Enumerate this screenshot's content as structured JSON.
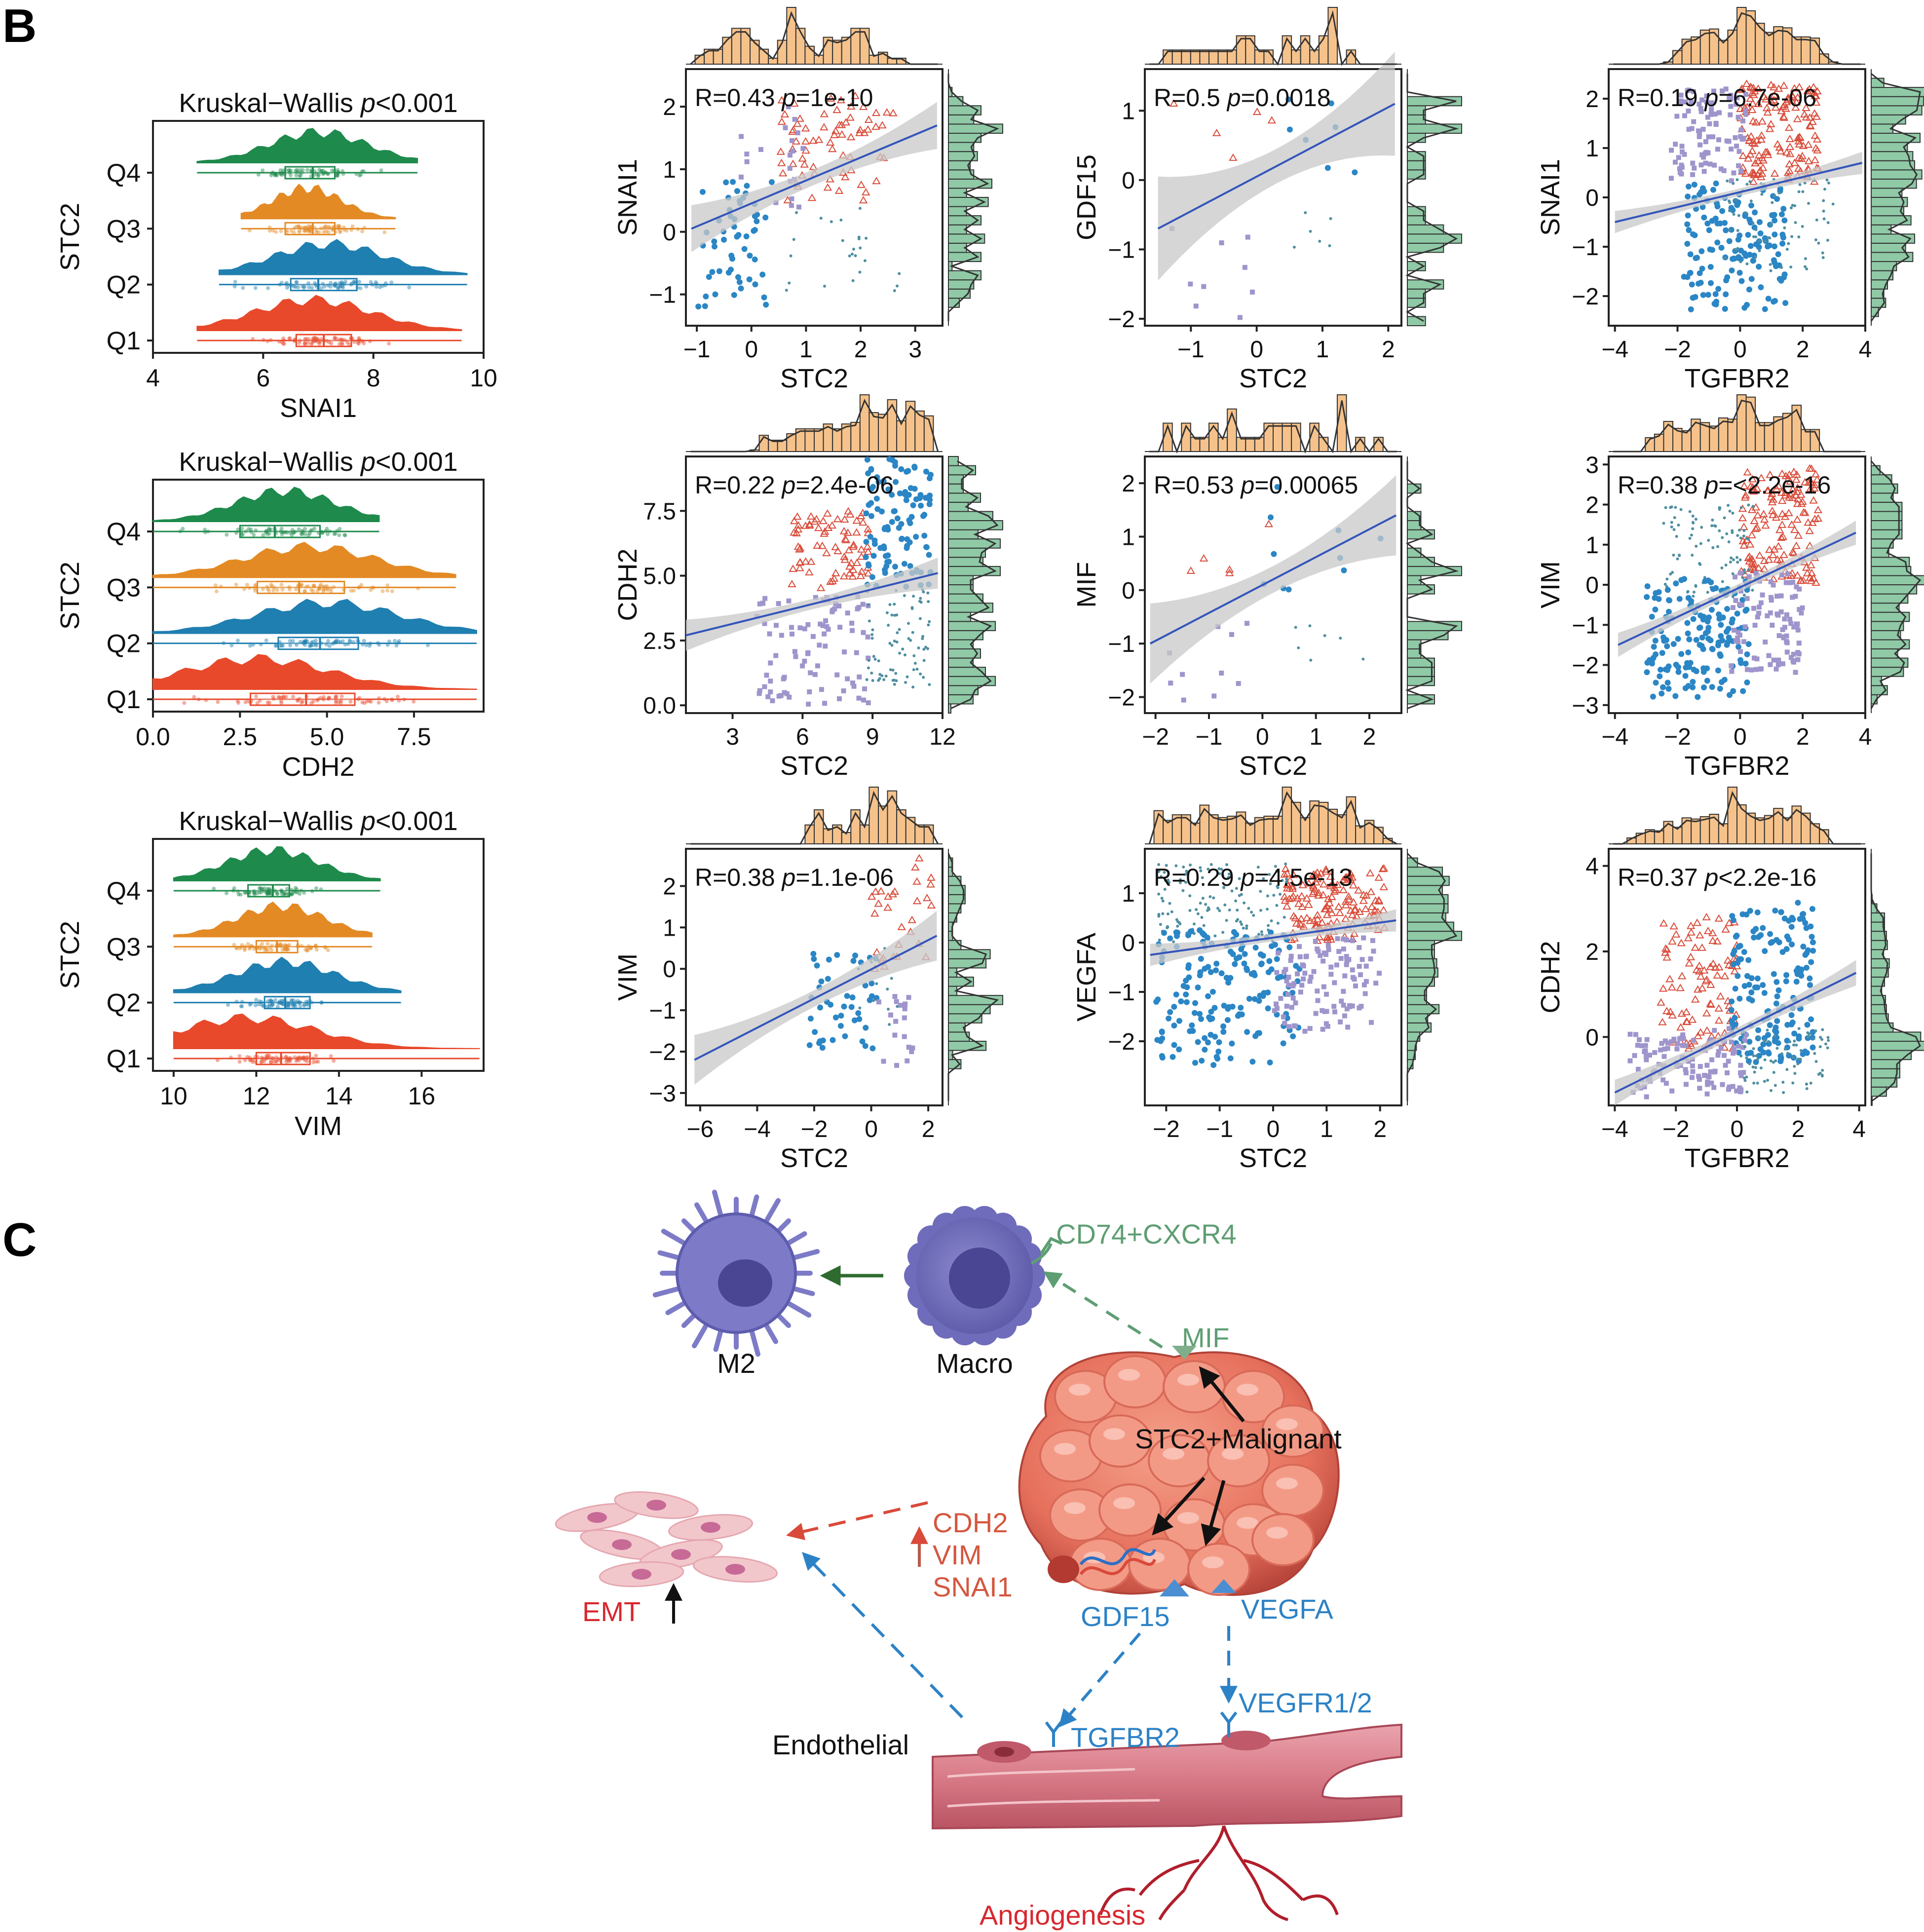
{
  "panels": {
    "b_letter": "B",
    "c_letter": "C"
  },
  "colors": {
    "Q1": "#e8492b",
    "Q2": "#1f7fb0",
    "Q3": "#e38a25",
    "Q4": "#1e8a4c",
    "red_pts": "#d94c3a",
    "blue_pts": "#2b86c5",
    "purple_pts": "#9f95cc",
    "teal_pts": "#4f8fa0",
    "reg_line": "#3355bb",
    "ci_band": "#c8c8c8",
    "hist_top": "#f6c28b",
    "hist_right": "#8fc9a6",
    "green_text": "#5e9e73",
    "red_text": "#d94a3a",
    "blue_text": "#2d82c6",
    "dark_green_arrow": "#2f6b2f"
  },
  "chart_data": [
    {
      "type": "raincloud",
      "title": "Kruskal−Wallis  p<0.001",
      "title_prefix": "Kruskal−Wallis  ",
      "title_p": "p",
      "title_suffix": "<0.001",
      "xlabel": "SNAI1",
      "ylabel": "STC2",
      "xlim": [
        4,
        10
      ],
      "xticks": [
        "4",
        "6",
        "8",
        "10"
      ],
      "groups": [
        {
          "name": "Q4",
          "range": [
            4.8,
            8.8
          ],
          "q1": 6.4,
          "median": 6.9,
          "q3": 7.3,
          "peak": 7.0
        },
        {
          "name": "Q3",
          "range": [
            5.6,
            8.4
          ],
          "q1": 6.4,
          "median": 6.9,
          "q3": 7.3,
          "peak": 6.8
        },
        {
          "name": "Q2",
          "range": [
            5.2,
            9.7
          ],
          "q1": 6.5,
          "median": 7.0,
          "q3": 7.7,
          "peak": 7.2
        },
        {
          "name": "Q1",
          "range": [
            4.8,
            9.6
          ],
          "q1": 6.6,
          "median": 7.1,
          "q3": 7.6,
          "peak": 6.9
        }
      ]
    },
    {
      "type": "raincloud",
      "title": "Kruskal−Wallis  p<0.001",
      "title_prefix": "Kruskal−Wallis  ",
      "title_p": "p",
      "title_suffix": "<0.001",
      "xlabel": "CDH2",
      "ylabel": "STC2",
      "xlim": [
        0,
        9.5
      ],
      "xticks": [
        "0.0",
        "2.5",
        "5.0",
        "7.5"
      ],
      "groups": [
        {
          "name": "Q4",
          "range": [
            0.0,
            6.5
          ],
          "q1": 2.5,
          "median": 3.5,
          "q3": 4.8,
          "peak": 3.8
        },
        {
          "name": "Q3",
          "range": [
            0.0,
            8.7
          ],
          "q1": 3.0,
          "median": 4.2,
          "q3": 5.5,
          "peak": 4.5
        },
        {
          "name": "Q2",
          "range": [
            0.0,
            9.3
          ],
          "q1": 3.6,
          "median": 4.8,
          "q3": 5.9,
          "peak": 5.0
        },
        {
          "name": "Q1",
          "range": [
            0.0,
            9.3
          ],
          "q1": 2.8,
          "median": 4.4,
          "q3": 5.8,
          "peak": 3.0
        }
      ]
    },
    {
      "type": "raincloud",
      "title": "Kruskal−Wallis  p<0.001",
      "title_prefix": "Kruskal−Wallis  ",
      "title_p": "p",
      "title_suffix": "<0.001",
      "xlabel": "VIM",
      "ylabel": "STC2",
      "xlim": [
        9.5,
        17.5
      ],
      "xticks": [
        "10",
        "12",
        "14",
        "16"
      ],
      "groups": [
        {
          "name": "Q4",
          "range": [
            10.0,
            15.0
          ],
          "q1": 11.8,
          "median": 12.4,
          "q3": 12.8,
          "peak": 12.4
        },
        {
          "name": "Q3",
          "range": [
            10.0,
            14.8
          ],
          "q1": 12.0,
          "median": 12.5,
          "q3": 13.0,
          "peak": 12.6
        },
        {
          "name": "Q2",
          "range": [
            10.0,
            15.5
          ],
          "q1": 12.2,
          "median": 12.7,
          "q3": 13.3,
          "peak": 12.7
        },
        {
          "name": "Q1",
          "range": [
            10.0,
            17.4
          ],
          "q1": 12.0,
          "median": 12.6,
          "q3": 13.3,
          "peak": 11.8
        }
      ]
    },
    {
      "type": "scatter",
      "annotation_r": "R=0.43",
      "annotation_p": "p",
      "annotation_val": "=1e-10",
      "xlabel": "STC2",
      "ylabel": "SNAI1",
      "xlim": [
        -1.2,
        3.5
      ],
      "ylim": [
        -1.5,
        2.6
      ],
      "xticks": [
        -1,
        0,
        1,
        2,
        3
      ],
      "yticks": [
        -1,
        0,
        1,
        2
      ],
      "line": {
        "x0": -1.1,
        "y0": 0.05,
        "x1": 3.4,
        "y1": 1.7
      },
      "ci": 0.25,
      "clusters": [
        {
          "c": "red",
          "m": "tri",
          "x": [
            0.5,
            2.6
          ],
          "y": [
            0.5,
            2.2
          ],
          "n": 70
        },
        {
          "c": "purple",
          "m": "sq",
          "x": [
            -0.2,
            1.0
          ],
          "y": [
            0.3,
            2.0
          ],
          "n": 20
        },
        {
          "c": "blue",
          "m": "dot",
          "x": [
            -1.0,
            0.4
          ],
          "y": [
            -1.2,
            0.8
          ],
          "n": 55
        },
        {
          "c": "teal",
          "m": "small",
          "x": [
            0.6,
            2.8
          ],
          "y": [
            -1.0,
            0.4
          ],
          "n": 25
        }
      ]
    },
    {
      "type": "scatter",
      "annotation_r": "R=0.5",
      "annotation_p": "p",
      "annotation_val": "=0.0018",
      "xlabel": "STC2",
      "ylabel": "GDF15",
      "xlim": [
        -1.7,
        2.2
      ],
      "ylim": [
        -2.1,
        1.6
      ],
      "xticks": [
        -1,
        0,
        1,
        2
      ],
      "yticks": [
        -2,
        -1,
        0,
        1
      ],
      "line": {
        "x0": -1.5,
        "y0": -0.7,
        "x1": 2.1,
        "y1": 1.1
      },
      "ci": 0.5,
      "clusters": [
        {
          "c": "red",
          "m": "tri",
          "x": [
            -1.5,
            0.6
          ],
          "y": [
            0.3,
            1.2
          ],
          "n": 5
        },
        {
          "c": "purple",
          "m": "sq",
          "x": [
            -1.4,
            0.0
          ],
          "y": [
            -2.0,
            -0.7
          ],
          "n": 9
        },
        {
          "c": "blue",
          "m": "dot",
          "x": [
            0.4,
            1.8
          ],
          "y": [
            0.0,
            1.2
          ],
          "n": 7
        },
        {
          "c": "teal",
          "m": "small",
          "x": [
            0.5,
            1.5
          ],
          "y": [
            -1.0,
            -0.2
          ],
          "n": 6
        }
      ]
    },
    {
      "type": "scatter",
      "annotation_r": "R=0.19",
      "annotation_p": "p",
      "annotation_val": "=6.7e-06",
      "xlabel": "TGFBR2",
      "ylabel": "SNAI1",
      "xlim": [
        -4.2,
        4
      ],
      "ylim": [
        -2.6,
        2.6
      ],
      "xticks": [
        -4,
        -2,
        0,
        2,
        4
      ],
      "yticks": [
        -2,
        -1,
        0,
        1,
        2
      ],
      "line": {
        "x0": -4.0,
        "y0": -0.5,
        "x1": 3.9,
        "y1": 0.7
      },
      "ci": 0.15,
      "clusters": [
        {
          "c": "red",
          "m": "tri",
          "x": [
            0.0,
            2.5
          ],
          "y": [
            0.3,
            2.3
          ],
          "n": 150
        },
        {
          "c": "purple",
          "m": "sq",
          "x": [
            -2.2,
            0.2
          ],
          "y": [
            0.3,
            2.2
          ],
          "n": 100
        },
        {
          "c": "blue",
          "m": "dot",
          "x": [
            -1.8,
            1.5
          ],
          "y": [
            -2.3,
            0.3
          ],
          "n": 150
        },
        {
          "c": "teal",
          "m": "small",
          "x": [
            -0.5,
            3.0
          ],
          "y": [
            -1.5,
            0.4
          ],
          "n": 80
        }
      ]
    },
    {
      "type": "scatter",
      "annotation_r": "R=0.22",
      "annotation_p": "p",
      "annotation_val": "=2.4e-06",
      "xlabel": "STC2",
      "ylabel": "CDH2",
      "xlim": [
        1,
        12
      ],
      "ylim": [
        -0.3,
        9.6
      ],
      "xticks": [
        3,
        6,
        9,
        12
      ],
      "yticks": [
        0.0,
        2.5,
        5.0,
        7.5
      ],
      "ytick_labels": [
        "0.0",
        "2.5",
        "5.0",
        "7.5"
      ],
      "line": {
        "x0": 1.0,
        "y0": 2.7,
        "x1": 11.8,
        "y1": 5.1
      },
      "ci": 0.4,
      "clusters": [
        {
          "c": "red",
          "m": "tri",
          "x": [
            5.5,
            9.0
          ],
          "y": [
            4.5,
            7.5
          ],
          "n": 75
        },
        {
          "c": "blue",
          "m": "dot",
          "x": [
            8.7,
            11.5
          ],
          "y": [
            4.5,
            9.5
          ],
          "n": 110
        },
        {
          "c": "purple",
          "m": "sq",
          "x": [
            4.0,
            9.0
          ],
          "y": [
            0.0,
            4.2
          ],
          "n": 90
        },
        {
          "c": "teal",
          "m": "small",
          "x": [
            8.7,
            11.5
          ],
          "y": [
            0.5,
            4.5
          ],
          "n": 80
        }
      ]
    },
    {
      "type": "scatter",
      "annotation_r": "R=0.53",
      "annotation_p": "p",
      "annotation_val": "=0.00065",
      "xlabel": "STC2",
      "ylabel": "MIF",
      "xlim": [
        -2.2,
        2.6
      ],
      "ylim": [
        -2.3,
        2.5
      ],
      "xticks": [
        -2,
        -1,
        0,
        1,
        2
      ],
      "yticks": [
        -2,
        -1,
        0,
        1,
        2
      ],
      "line": {
        "x0": -2.1,
        "y0": -1.0,
        "x1": 2.5,
        "y1": 1.4
      },
      "ci": 0.5,
      "clusters": [
        {
          "c": "red",
          "m": "tri",
          "x": [
            -1.6,
            0.3
          ],
          "y": [
            0.3,
            1.4
          ],
          "n": 5
        },
        {
          "c": "purple",
          "m": "sq",
          "x": [
            -2.0,
            0.0
          ],
          "y": [
            -2.1,
            -0.6
          ],
          "n": 10
        },
        {
          "c": "blue",
          "m": "dot",
          "x": [
            0.0,
            2.4
          ],
          "y": [
            0.0,
            2.0
          ],
          "n": 10
        },
        {
          "c": "teal",
          "m": "small",
          "x": [
            0.5,
            2.0
          ],
          "y": [
            -1.5,
            -0.2
          ],
          "n": 7
        }
      ]
    },
    {
      "type": "scatter",
      "annotation_r": "R=0.38",
      "annotation_p": "p",
      "annotation_val": "=<2.2e-16",
      "xlabel": "TGFBR2",
      "ylabel": "VIM",
      "xlim": [
        -4.2,
        4
      ],
      "ylim": [
        -3.2,
        3.2
      ],
      "xticks": [
        -4,
        -2,
        0,
        2,
        4
      ],
      "yticks": [
        -3,
        -2,
        -1,
        0,
        1,
        2,
        3
      ],
      "line": {
        "x0": -3.9,
        "y0": -1.5,
        "x1": 3.7,
        "y1": 1.3
      },
      "ci": 0.2,
      "clusters": [
        {
          "c": "red",
          "m": "tri",
          "x": [
            0.0,
            2.5
          ],
          "y": [
            0.0,
            2.9
          ],
          "n": 150
        },
        {
          "c": "teal",
          "m": "small",
          "x": [
            -2.5,
            0.5
          ],
          "y": [
            -0.3,
            2.0
          ],
          "n": 100
        },
        {
          "c": "blue",
          "m": "dot",
          "x": [
            -3.0,
            0.3
          ],
          "y": [
            -2.8,
            0.2
          ],
          "n": 160
        },
        {
          "c": "purple",
          "m": "sq",
          "x": [
            -0.3,
            2.0
          ],
          "y": [
            -2.2,
            0.3
          ],
          "n": 100
        }
      ]
    },
    {
      "type": "scatter",
      "annotation_r": "R=0.38",
      "annotation_p": "p",
      "annotation_val": "=1.1e-06",
      "xlabel": "STC2",
      "ylabel": "VIM",
      "xlim": [
        -6.5,
        2.5
      ],
      "ylim": [
        -3.3,
        2.9
      ],
      "xticks": [
        -6,
        -4,
        -2,
        0,
        2
      ],
      "yticks": [
        -3,
        -2,
        -1,
        0,
        1,
        2
      ],
      "line": {
        "x0": -6.2,
        "y0": -2.2,
        "x1": 2.3,
        "y1": 0.8
      },
      "ci": 0.4,
      "clusters": [
        {
          "c": "red",
          "m": "tri",
          "x": [
            0.0,
            2.2
          ],
          "y": [
            0.0,
            2.7
          ],
          "n": 30
        },
        {
          "c": "blue",
          "m": "dot",
          "x": [
            -2.2,
            0.2
          ],
          "y": [
            -2.0,
            0.5
          ],
          "n": 45
        },
        {
          "c": "purple",
          "m": "sq",
          "x": [
            0.0,
            1.5
          ],
          "y": [
            -2.5,
            -0.3
          ],
          "n": 18
        },
        {
          "c": "teal",
          "m": "small",
          "x": [
            -0.5,
            1.0
          ],
          "y": [
            -1.5,
            0.5
          ],
          "n": 12
        }
      ]
    },
    {
      "type": "scatter",
      "annotation_r": "R=0.29",
      "annotation_p": "p",
      "annotation_val": "=4.5e-13",
      "xlabel": "STC2",
      "ylabel": "VEGFA",
      "xlim": [
        -2.4,
        2.4
      ],
      "ylim": [
        -3.3,
        1.9
      ],
      "xticks": [
        -2,
        -1,
        0,
        1,
        2
      ],
      "yticks": [
        -2,
        -1,
        0,
        1
      ],
      "line": {
        "x0": -2.3,
        "y0": -0.25,
        "x1": 2.3,
        "y1": 0.45
      },
      "ci": 0.15,
      "clusters": [
        {
          "c": "red",
          "m": "tri",
          "x": [
            0.2,
            2.1
          ],
          "y": [
            0.0,
            1.5
          ],
          "n": 150
        },
        {
          "c": "teal",
          "m": "small",
          "x": [
            -2.2,
            0.3
          ],
          "y": [
            0.0,
            1.6
          ],
          "n": 130
        },
        {
          "c": "blue",
          "m": "dot",
          "x": [
            -2.2,
            0.5
          ],
          "y": [
            -2.5,
            0.3
          ],
          "n": 170
        },
        {
          "c": "purple",
          "m": "sq",
          "x": [
            0.0,
            2.0
          ],
          "y": [
            -1.8,
            0.1
          ],
          "n": 110
        }
      ]
    },
    {
      "type": "scatter",
      "annotation_r": "R=0.37",
      "annotation_p": "p",
      "annotation_val": "<2.2e-16",
      "xlabel": "TGFBR2",
      "ylabel": "CDH2",
      "xlim": [
        -4.2,
        4.2
      ],
      "ylim": [
        -1.6,
        4.4
      ],
      "xticks": [
        -4,
        -2,
        0,
        2,
        4
      ],
      "yticks": [
        0,
        2,
        4
      ],
      "line": {
        "x0": -4.0,
        "y0": -1.3,
        "x1": 3.9,
        "y1": 1.5
      },
      "ci": 0.2,
      "clusters": [
        {
          "c": "red",
          "m": "tri",
          "x": [
            -2.5,
            0.0
          ],
          "y": [
            -0.3,
            2.8
          ],
          "n": 100
        },
        {
          "c": "blue",
          "m": "dot",
          "x": [
            -0.2,
            2.5
          ],
          "y": [
            -0.6,
            3.2
          ],
          "n": 170
        },
        {
          "c": "purple",
          "m": "sq",
          "x": [
            -3.5,
            0.3
          ],
          "y": [
            -1.4,
            0.2
          ],
          "n": 120
        },
        {
          "c": "teal",
          "m": "small",
          "x": [
            0.0,
            3.0
          ],
          "y": [
            -1.3,
            0.2
          ],
          "n": 80
        }
      ]
    }
  ],
  "diagram_c": {
    "m2_label": "M2",
    "macro_label": "Macro",
    "receptor_label": "CD74+CXCR4",
    "mif_label": "MIF",
    "malignant_label": "STC2+Malignant",
    "emt_genes": [
      "CDH2",
      "VIM",
      "SNAI1"
    ],
    "emt_label": "EMT",
    "gdf15_label": "GDF15",
    "vegfa_label": "VEGFA",
    "vegfr_label": "VEGFR1/2",
    "tgfbr2_label": "TGFBR2",
    "endothelial_label": "Endothelial",
    "angiogenesis_label": "Angiogenesis"
  }
}
